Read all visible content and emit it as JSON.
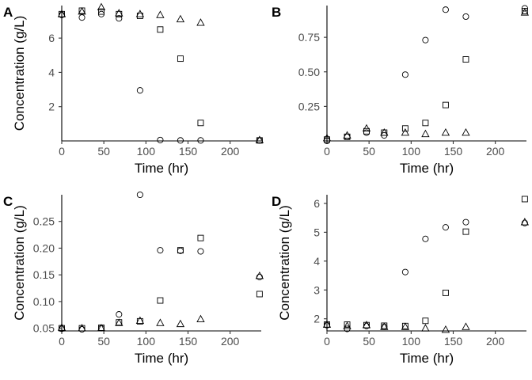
{
  "chart_data": [
    {
      "type": "scatter",
      "panel_label": "A",
      "xlabel": "Time (hr)",
      "ylabel": "Concentration (g/L)",
      "xlim": [
        0,
        237
      ],
      "ylim": [
        0,
        7.9
      ],
      "xticks": [
        0,
        50,
        100,
        150,
        200
      ],
      "yticks": [
        2,
        4,
        6
      ],
      "x": [
        0,
        24,
        47,
        68,
        93,
        117,
        141,
        165,
        235
      ],
      "series": [
        {
          "marker": "circle",
          "values": [
            7.35,
            7.2,
            7.4,
            7.15,
            2.95,
            0.05,
            0.03,
            0.03,
            0.03
          ]
        },
        {
          "marker": "square",
          "values": [
            7.4,
            7.6,
            7.55,
            7.4,
            7.3,
            6.5,
            4.8,
            1.05,
            0.03
          ]
        },
        {
          "marker": "triangle",
          "values": [
            7.4,
            7.55,
            7.8,
            7.45,
            7.4,
            7.35,
            7.1,
            6.9,
            0.05
          ]
        }
      ]
    },
    {
      "type": "scatter",
      "panel_label": "B",
      "xlabel": "Time (hr)",
      "ylabel": "",
      "xlim": [
        0,
        237
      ],
      "ylim": [
        0,
        0.98
      ],
      "xticks": [
        0,
        50,
        100,
        150,
        200
      ],
      "yticks": [
        "0.25",
        "0.50",
        "0.75"
      ],
      "x": [
        0,
        24,
        47,
        68,
        93,
        117,
        141,
        165,
        235
      ],
      "series": [
        {
          "marker": "circle",
          "values": [
            0.0,
            0.03,
            0.06,
            0.04,
            0.48,
            0.73,
            0.95,
            0.9,
            0.96
          ]
        },
        {
          "marker": "square",
          "values": [
            0.01,
            0.03,
            0.07,
            0.06,
            0.09,
            0.13,
            0.26,
            0.59,
            0.94
          ]
        },
        {
          "marker": "triangle",
          "values": [
            0.02,
            0.04,
            0.09,
            0.06,
            0.06,
            0.05,
            0.06,
            0.06,
            0.93
          ]
        }
      ]
    },
    {
      "type": "scatter",
      "panel_label": "C",
      "xlabel": "Time (hr)",
      "ylabel": "Concentration (g/L)",
      "xlim": [
        0,
        237
      ],
      "ylim": [
        0.045,
        0.3
      ],
      "xticks": [
        0,
        50,
        100,
        150,
        200
      ],
      "yticks": [
        "0.05",
        "0.10",
        "0.15",
        "0.20",
        "0.25"
      ],
      "x": [
        0,
        24,
        47,
        68,
        93,
        117,
        141,
        165,
        235
      ],
      "series": [
        {
          "marker": "circle",
          "values": [
            0.049,
            0.048,
            0.05,
            0.076,
            0.3,
            0.196,
            0.195,
            0.194,
            0.146
          ]
        },
        {
          "marker": "square",
          "values": [
            0.05,
            0.05,
            0.051,
            0.061,
            0.063,
            0.102,
            0.196,
            0.219,
            0.114
          ]
        },
        {
          "marker": "triangle",
          "values": [
            0.051,
            0.05,
            0.05,
            0.06,
            0.064,
            0.06,
            0.058,
            0.067,
            0.148
          ]
        }
      ]
    },
    {
      "type": "scatter",
      "panel_label": "D",
      "xlabel": "Time (hr)",
      "ylabel": "Concentration (g/L)",
      "xlim": [
        0,
        237
      ],
      "ylim": [
        1.58,
        6.3
      ],
      "xticks": [
        0,
        50,
        100,
        150,
        200
      ],
      "yticks": [
        2,
        3,
        4,
        5,
        6
      ],
      "x": [
        0,
        24,
        47,
        68,
        93,
        117,
        141,
        165,
        235
      ],
      "series": [
        {
          "marker": "circle",
          "values": [
            1.78,
            1.65,
            1.75,
            1.72,
            3.62,
            4.77,
            5.17,
            5.35,
            5.32
          ]
        },
        {
          "marker": "square",
          "values": [
            1.8,
            1.8,
            1.78,
            1.76,
            1.75,
            1.93,
            2.9,
            5.02,
            6.15
          ]
        },
        {
          "marker": "triangle",
          "values": [
            1.8,
            1.75,
            1.78,
            1.72,
            1.72,
            1.67,
            1.62,
            1.72,
            5.35
          ]
        }
      ]
    }
  ]
}
